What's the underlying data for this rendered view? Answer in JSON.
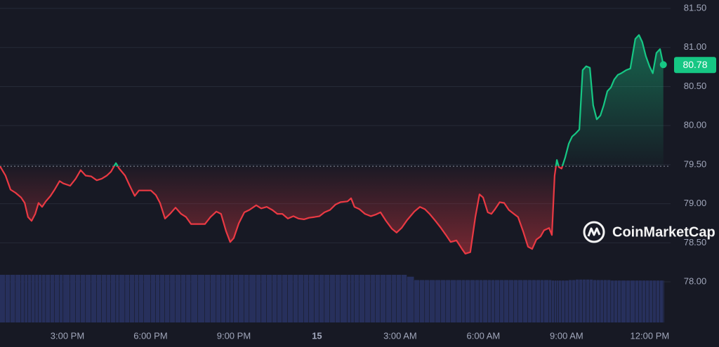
{
  "chart_data": {
    "type": "line",
    "x": [
      12.57,
      12.77,
      12.95,
      13.13,
      13.33,
      13.46,
      13.58,
      13.71,
      13.84,
      13.96,
      14.09,
      14.22,
      14.39,
      14.54,
      14.72,
      14.85,
      15.1,
      15.3,
      15.48,
      15.66,
      15.86,
      16.06,
      16.24,
      16.42,
      16.57,
      16.75,
      16.87,
      17.08,
      17.25,
      17.43,
      17.58,
      17.76,
      18.01,
      18.19,
      18.34,
      18.52,
      18.7,
      18.9,
      19.1,
      19.28,
      19.46,
      19.71,
      19.96,
      20.16,
      20.37,
      20.54,
      20.72,
      20.87,
      21.0,
      21.18,
      21.38,
      21.56,
      21.81,
      21.99,
      22.19,
      22.39,
      22.57,
      22.75,
      22.95,
      23.15,
      23.33,
      23.53,
      23.71,
      23.91,
      24.09,
      24.27,
      24.47,
      24.67,
      24.85,
      25.1,
      25.23,
      25.35,
      25.53,
      25.73,
      25.94,
      26.11,
      26.29,
      26.49,
      26.7,
      26.87,
      27.05,
      27.25,
      27.51,
      27.71,
      27.89,
      28.06,
      28.27,
      28.47,
      28.65,
      28.82,
      29.03,
      29.23,
      29.35,
      29.53,
      29.71,
      29.86,
      29.99,
      30.16,
      30.29,
      30.42,
      30.59,
      30.75,
      30.92,
      31.1,
      31.25,
      31.43,
      31.61,
      31.76,
      31.91,
      32.06,
      32.19,
      32.37,
      32.47,
      32.57,
      32.65,
      32.72,
      32.82,
      32.95,
      33.08,
      33.2,
      33.33,
      33.46,
      33.58,
      33.71,
      33.84,
      33.96,
      34.09,
      34.22,
      34.34,
      34.47,
      34.6,
      34.72,
      34.85,
      34.97,
      35.15,
      35.3,
      35.48,
      35.61,
      35.73,
      35.86,
      35.99,
      36.11,
      36.24,
      36.37,
      36.49
    ],
    "series": [
      {
        "up_color": "#16c784",
        "down_color": "#ea3943",
        "values": [
          79.48,
          79.36,
          79.18,
          79.14,
          79.08,
          79.01,
          78.83,
          78.78,
          78.87,
          79.01,
          78.96,
          79.03,
          79.1,
          79.18,
          79.29,
          79.26,
          79.23,
          79.32,
          79.43,
          79.36,
          79.35,
          79.3,
          79.32,
          79.36,
          79.41,
          79.52,
          79.45,
          79.36,
          79.23,
          79.1,
          79.17,
          79.17,
          79.17,
          79.11,
          79.01,
          78.81,
          78.87,
          78.95,
          78.87,
          78.83,
          78.74,
          78.74,
          78.74,
          78.83,
          78.9,
          78.87,
          78.65,
          78.51,
          78.56,
          78.75,
          78.89,
          78.92,
          78.98,
          78.94,
          78.96,
          78.92,
          78.87,
          78.87,
          78.81,
          78.84,
          78.81,
          78.8,
          78.82,
          78.83,
          78.84,
          78.89,
          78.92,
          78.99,
          79.02,
          79.03,
          79.07,
          78.96,
          78.93,
          78.87,
          78.84,
          78.86,
          78.89,
          78.78,
          78.68,
          78.63,
          78.69,
          78.79,
          78.9,
          78.96,
          78.93,
          78.87,
          78.78,
          78.69,
          78.6,
          78.51,
          78.53,
          78.42,
          78.36,
          78.38,
          78.83,
          79.12,
          79.08,
          78.89,
          78.87,
          78.93,
          79.02,
          79.01,
          78.92,
          78.87,
          78.83,
          78.65,
          78.45,
          78.42,
          78.54,
          78.58,
          78.66,
          78.69,
          78.6,
          79.36,
          79.56,
          79.47,
          79.45,
          79.59,
          79.77,
          79.86,
          79.9,
          79.95,
          80.71,
          80.76,
          80.74,
          80.26,
          80.08,
          80.13,
          80.26,
          80.44,
          80.49,
          80.59,
          80.65,
          80.67,
          80.71,
          80.73,
          81.11,
          81.16,
          81.07,
          80.89,
          80.76,
          80.67,
          80.93,
          80.98,
          80.78
        ]
      }
    ],
    "volume": {
      "color": "#27305c",
      "values": [
        100,
        100,
        100,
        100,
        100,
        100,
        100,
        100,
        100,
        100,
        100,
        100,
        100,
        100,
        100,
        100,
        100,
        100,
        100,
        100,
        100,
        100,
        100,
        100,
        100,
        100,
        100,
        100,
        100,
        100,
        100,
        100,
        100,
        100,
        100,
        100,
        100,
        100,
        100,
        100,
        100,
        100,
        100,
        100,
        100,
        100,
        100,
        100,
        100,
        100,
        100,
        100,
        100,
        100,
        100,
        100,
        100,
        100,
        100,
        100,
        100,
        100,
        100,
        100,
        100,
        100,
        100,
        100,
        100,
        100,
        100,
        100,
        100,
        100,
        100,
        100,
        100,
        100,
        100,
        100,
        100,
        96,
        89,
        89,
        89,
        89,
        89,
        89,
        89,
        89,
        89,
        89,
        89,
        89,
        89,
        89,
        89,
        89,
        89,
        89,
        89,
        89,
        89,
        89,
        89,
        89,
        89,
        89,
        89,
        89,
        89,
        89,
        88,
        88,
        88,
        88,
        88,
        88,
        89,
        89,
        90,
        90,
        90,
        90,
        90,
        89,
        89,
        89,
        89,
        89,
        88,
        88,
        88,
        88,
        88,
        88,
        88,
        88,
        88,
        88,
        88,
        88,
        88,
        88,
        88
      ]
    },
    "xlim": [
      12.57,
      36.75
    ],
    "xticks": [
      {
        "value": 15,
        "label": "3:00 PM"
      },
      {
        "value": 18,
        "label": "6:00 PM"
      },
      {
        "value": 21,
        "label": "9:00 PM"
      },
      {
        "value": 24,
        "label": "15"
      },
      {
        "value": 27,
        "label": "3:00 AM"
      },
      {
        "value": 30,
        "label": "6:00 AM"
      },
      {
        "value": 33,
        "label": "9:00 AM"
      },
      {
        "value": 36,
        "label": "12:00 PM"
      }
    ],
    "ylim": [
      77.48,
      81.5
    ],
    "yticks": [
      {
        "value": 78,
        "label": "78.00"
      },
      {
        "value": 78.5,
        "label": "78.50"
      },
      {
        "value": 79,
        "label": "79.00"
      },
      {
        "value": 79.5,
        "label": "79.50"
      },
      {
        "value": 80,
        "label": "80.00"
      },
      {
        "value": 80.5,
        "label": "80.50"
      },
      {
        "value": 81,
        "label": "81.00"
      },
      {
        "value": 81.5,
        "label": "81.50"
      }
    ],
    "grid": true,
    "watermark": "CoinMarketCap"
  }
}
